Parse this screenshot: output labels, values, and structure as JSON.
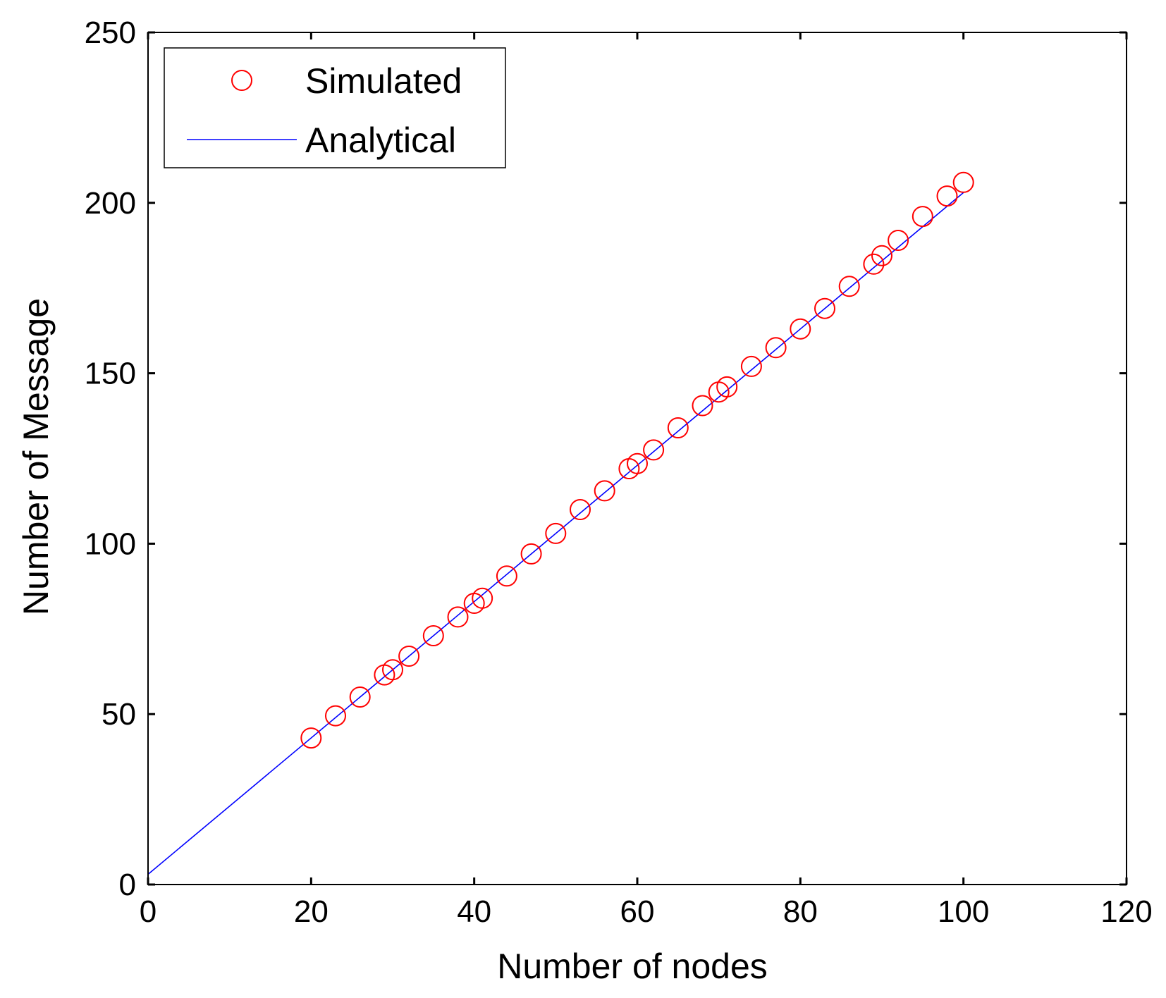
{
  "chart_data": {
    "type": "scatter",
    "title": "",
    "xlabel": "Number of nodes",
    "ylabel": "Number of Message",
    "xlim": [
      0,
      120
    ],
    "ylim": [
      0,
      250
    ],
    "xticks": [
      0,
      20,
      40,
      60,
      80,
      100,
      120
    ],
    "yticks": [
      0,
      50,
      100,
      150,
      200,
      250
    ],
    "grid": false,
    "legend_position": "top-left",
    "series": [
      {
        "name": "Simulated",
        "style": "markers",
        "marker": "circle",
        "color": "#ff0000",
        "x": [
          20,
          23,
          26,
          29,
          30,
          32,
          35,
          38,
          40,
          41,
          44,
          47,
          50,
          53,
          56,
          59,
          60,
          62,
          65,
          68,
          70,
          71,
          74,
          77,
          80,
          83,
          86,
          89,
          90,
          92,
          95,
          98,
          100
        ],
        "y": [
          43,
          49.5,
          55,
          61.5,
          63,
          67,
          73,
          78.5,
          82.5,
          84,
          90.5,
          97,
          103,
          110,
          115.5,
          122,
          123.5,
          127.5,
          134,
          140.5,
          144.5,
          146,
          152,
          157.5,
          163,
          169,
          175.5,
          182,
          184.5,
          189,
          196,
          202,
          206
        ]
      },
      {
        "name": "Analytical",
        "style": "line",
        "color": "#0000ff",
        "x": [
          0,
          100
        ],
        "y": [
          3,
          203
        ]
      }
    ]
  }
}
